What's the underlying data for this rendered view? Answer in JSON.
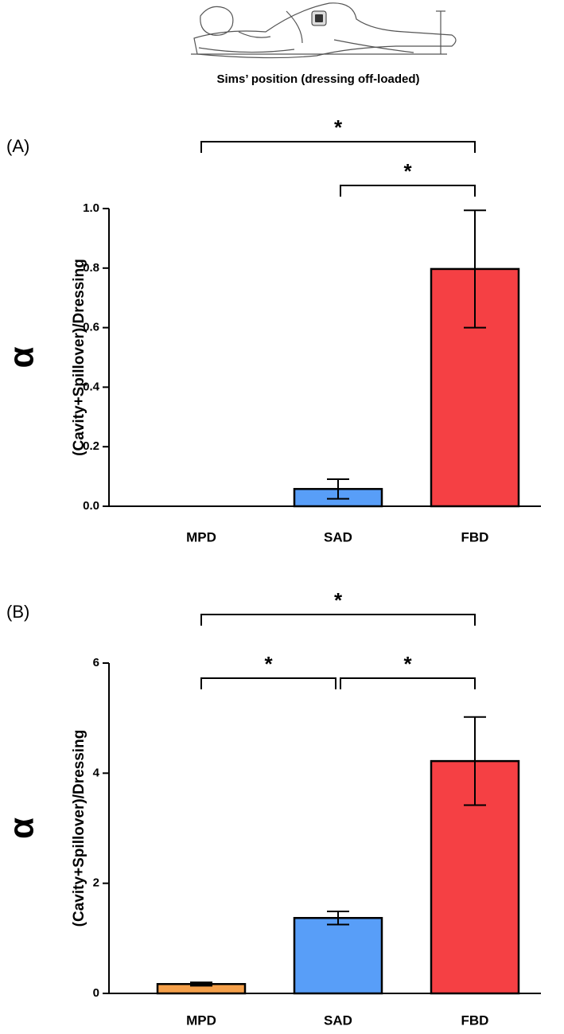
{
  "caption": "Sims’ position (dressing off-loaded)",
  "chart_data": [
    {
      "type": "bar",
      "panel": "(A)",
      "title": "α",
      "ylabel": "(Cavity+Spillover)/Dressing",
      "categories": [
        "MPD",
        "SAD",
        "FBD"
      ],
      "values": [
        0,
        0.058,
        0.797
      ],
      "errors": [
        null,
        0.033,
        0.197
      ],
      "colors": [
        "#f5a04a",
        "#589ef8",
        "#f54044"
      ],
      "ylim": [
        0,
        1
      ],
      "yticks": [
        {
          "value": 0,
          "label": "0.0"
        },
        0.2,
        0.4,
        0.6,
        0.8,
        {
          "value": 1,
          "label": "1.0"
        }
      ],
      "brackets": [
        {
          "from": "SAD",
          "to": "FBD",
          "label": "*"
        },
        {
          "from": "MPD",
          "to": "FBD",
          "label": "*"
        }
      ]
    },
    {
      "type": "bar",
      "panel": "(B)",
      "title": "α",
      "ylabel": "(Cavity+Spillover)/Dressing",
      "categories": [
        "MPD",
        "SAD",
        "FBD"
      ],
      "values": [
        0.17,
        1.37,
        4.22
      ],
      "errors": [
        0.03,
        0.12,
        0.8
      ],
      "colors": [
        "#f5a04a",
        "#589ef8",
        "#f54044"
      ],
      "ylim": [
        0,
        6
      ],
      "yticks": [
        0,
        2,
        4,
        6
      ],
      "brackets": [
        {
          "from": "MPD",
          "to": "SAD",
          "label": "*"
        },
        {
          "from": "SAD",
          "to": "FBD",
          "label": "*"
        },
        {
          "from": "MPD",
          "to": "FBD",
          "label": "*"
        }
      ]
    }
  ]
}
